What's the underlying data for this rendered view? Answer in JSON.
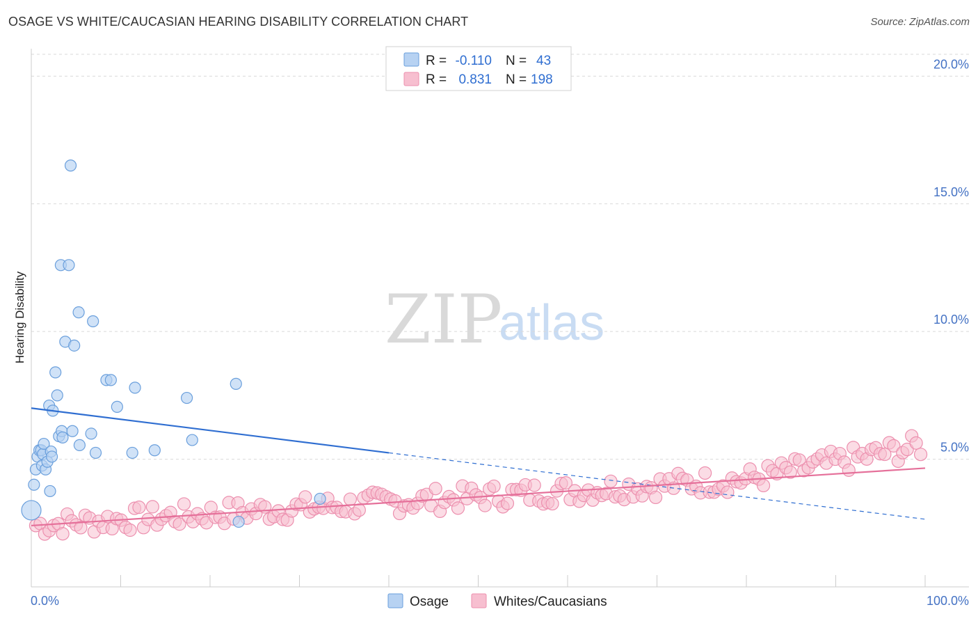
{
  "title": "OSAGE VS WHITE/CAUCASIAN HEARING DISABILITY CORRELATION CHART",
  "source": "Source: ZipAtlas.com",
  "watermark": {
    "zip": "ZIP",
    "atlas": "atlas"
  },
  "colors": {
    "osage_fill": "#b7d2f2",
    "osage_stroke": "#6a9fdc",
    "osage_line": "#2f6ed1",
    "white_fill": "#f7bfd0",
    "white_stroke": "#ec8fae",
    "white_line": "#e5709a",
    "grid": "#d9d9d9",
    "axis_label": "#4472c4"
  },
  "legend": {
    "r_label": "R =",
    "n_label": "N =",
    "osage_r": "-0.110",
    "osage_n": "43",
    "white_r": "0.831",
    "white_n": "198"
  },
  "bottom_legend": {
    "osage": "Osage",
    "white": "Whites/Caucasians"
  },
  "chart_data": {
    "type": "scatter",
    "title": "OSAGE VS WHITE/CAUCASIAN HEARING DISABILITY CORRELATION CHART",
    "xlabel": "",
    "ylabel": "Hearing Disability",
    "xlim": [
      0,
      100
    ],
    "ylim": [
      0,
      20.8
    ],
    "x_tick_labels": [
      "0.0%",
      "100.0%"
    ],
    "y_ticks": [
      5,
      10,
      15,
      20
    ],
    "y_tick_labels": [
      "5.0%",
      "10.0%",
      "15.0%",
      "20.0%"
    ],
    "grid": true,
    "series": [
      {
        "name": "Osage",
        "r": -0.11,
        "n": 43,
        "trend": {
          "x0": 0,
          "y0": 7.0,
          "x1": 40,
          "y1": 5.25,
          "dash_to_x": 100,
          "dash_to_y": 2.65
        },
        "points": [
          [
            0.0,
            3.0,
            28
          ],
          [
            0.3,
            4.0,
            16
          ],
          [
            0.5,
            4.6,
            16
          ],
          [
            0.7,
            5.1,
            16
          ],
          [
            0.9,
            5.35,
            16
          ],
          [
            1.1,
            5.35,
            16
          ],
          [
            1.2,
            4.75,
            16
          ],
          [
            1.3,
            5.2,
            16
          ],
          [
            1.4,
            5.6,
            16
          ],
          [
            1.6,
            4.6,
            16
          ],
          [
            1.8,
            4.9,
            16
          ],
          [
            2.0,
            7.1,
            16
          ],
          [
            2.1,
            3.75,
            16
          ],
          [
            2.2,
            5.3,
            16
          ],
          [
            2.3,
            5.1,
            16
          ],
          [
            2.4,
            6.9,
            16
          ],
          [
            2.7,
            8.4,
            16
          ],
          [
            2.9,
            7.5,
            16
          ],
          [
            3.1,
            5.9,
            16
          ],
          [
            3.3,
            12.6,
            16
          ],
          [
            3.4,
            6.1,
            16
          ],
          [
            3.5,
            5.85,
            16
          ],
          [
            3.8,
            9.6,
            16
          ],
          [
            4.2,
            12.6,
            16
          ],
          [
            4.4,
            16.5,
            16
          ],
          [
            4.6,
            6.1,
            16
          ],
          [
            4.8,
            9.45,
            16
          ],
          [
            5.3,
            10.75,
            16
          ],
          [
            5.4,
            5.55,
            16
          ],
          [
            6.7,
            6.0,
            16
          ],
          [
            6.9,
            10.4,
            16
          ],
          [
            7.2,
            5.25,
            16
          ],
          [
            8.4,
            8.1,
            16
          ],
          [
            8.9,
            8.1,
            16
          ],
          [
            9.6,
            7.05,
            16
          ],
          [
            11.3,
            5.25,
            16
          ],
          [
            11.6,
            7.8,
            16
          ],
          [
            13.8,
            5.35,
            16
          ],
          [
            17.4,
            7.4,
            16
          ],
          [
            18.0,
            5.75,
            16
          ],
          [
            22.9,
            7.95,
            16
          ],
          [
            23.2,
            2.55,
            16
          ],
          [
            32.3,
            3.45,
            16
          ]
        ]
      },
      {
        "name": "Whites/Caucasians",
        "r": 0.831,
        "n": 198,
        "trend": {
          "x0": 0,
          "y0": 2.4,
          "x1": 100,
          "y1": 4.65
        }
      }
    ]
  }
}
